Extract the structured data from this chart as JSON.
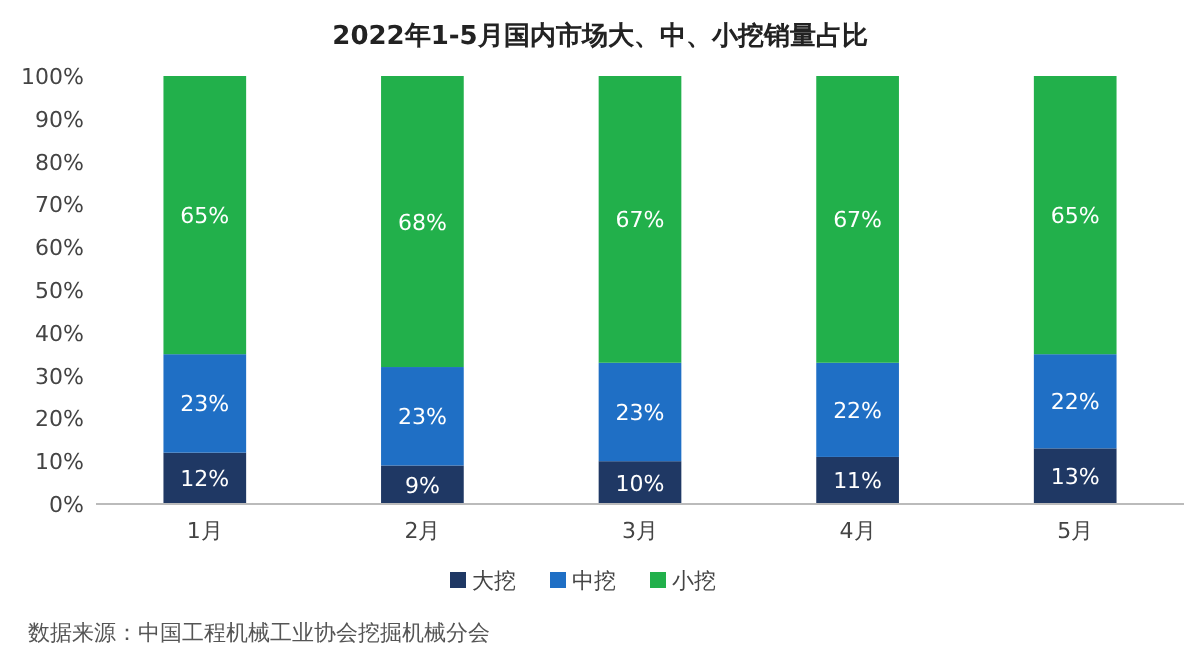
{
  "chart_data": {
    "type": "bar",
    "stacked": true,
    "title": "2022年1-5月国内市场大、中、小挖销量占比",
    "categories": [
      "1月",
      "2月",
      "3月",
      "4月",
      "5月"
    ],
    "series": [
      {
        "name": "大挖",
        "color": "#1f3864",
        "values": [
          12,
          9,
          10,
          11,
          13
        ],
        "value_labels": [
          "12%",
          "9%",
          "10%",
          "11%",
          "13%"
        ]
      },
      {
        "name": "中挖",
        "color": "#1f6fc5",
        "values": [
          23,
          23,
          23,
          22,
          22
        ],
        "value_labels": [
          "23%",
          "23%",
          "23%",
          "22%",
          "22%"
        ]
      },
      {
        "name": "小挖",
        "color": "#22b04b",
        "values": [
          65,
          68,
          67,
          67,
          65
        ],
        "value_labels": [
          "65%",
          "68%",
          "67%",
          "67%",
          "65%"
        ]
      }
    ],
    "ylim": [
      0,
      100
    ],
    "yticks": [
      {
        "value": 0,
        "label": "0%"
      },
      {
        "value": 10,
        "label": "10%"
      },
      {
        "value": 20,
        "label": "20%"
      },
      {
        "value": 30,
        "label": "30%"
      },
      {
        "value": 40,
        "label": "40%"
      },
      {
        "value": 50,
        "label": "50%"
      },
      {
        "value": 60,
        "label": "60%"
      },
      {
        "value": 70,
        "label": "70%"
      },
      {
        "value": 80,
        "label": "80%"
      },
      {
        "value": 90,
        "label": "90%"
      },
      {
        "value": 100,
        "label": "100%"
      }
    ],
    "grid": false,
    "legend": "bottom",
    "annotations": [
      "数据来源：中国工程机械工业协会挖掘机械分会"
    ]
  }
}
